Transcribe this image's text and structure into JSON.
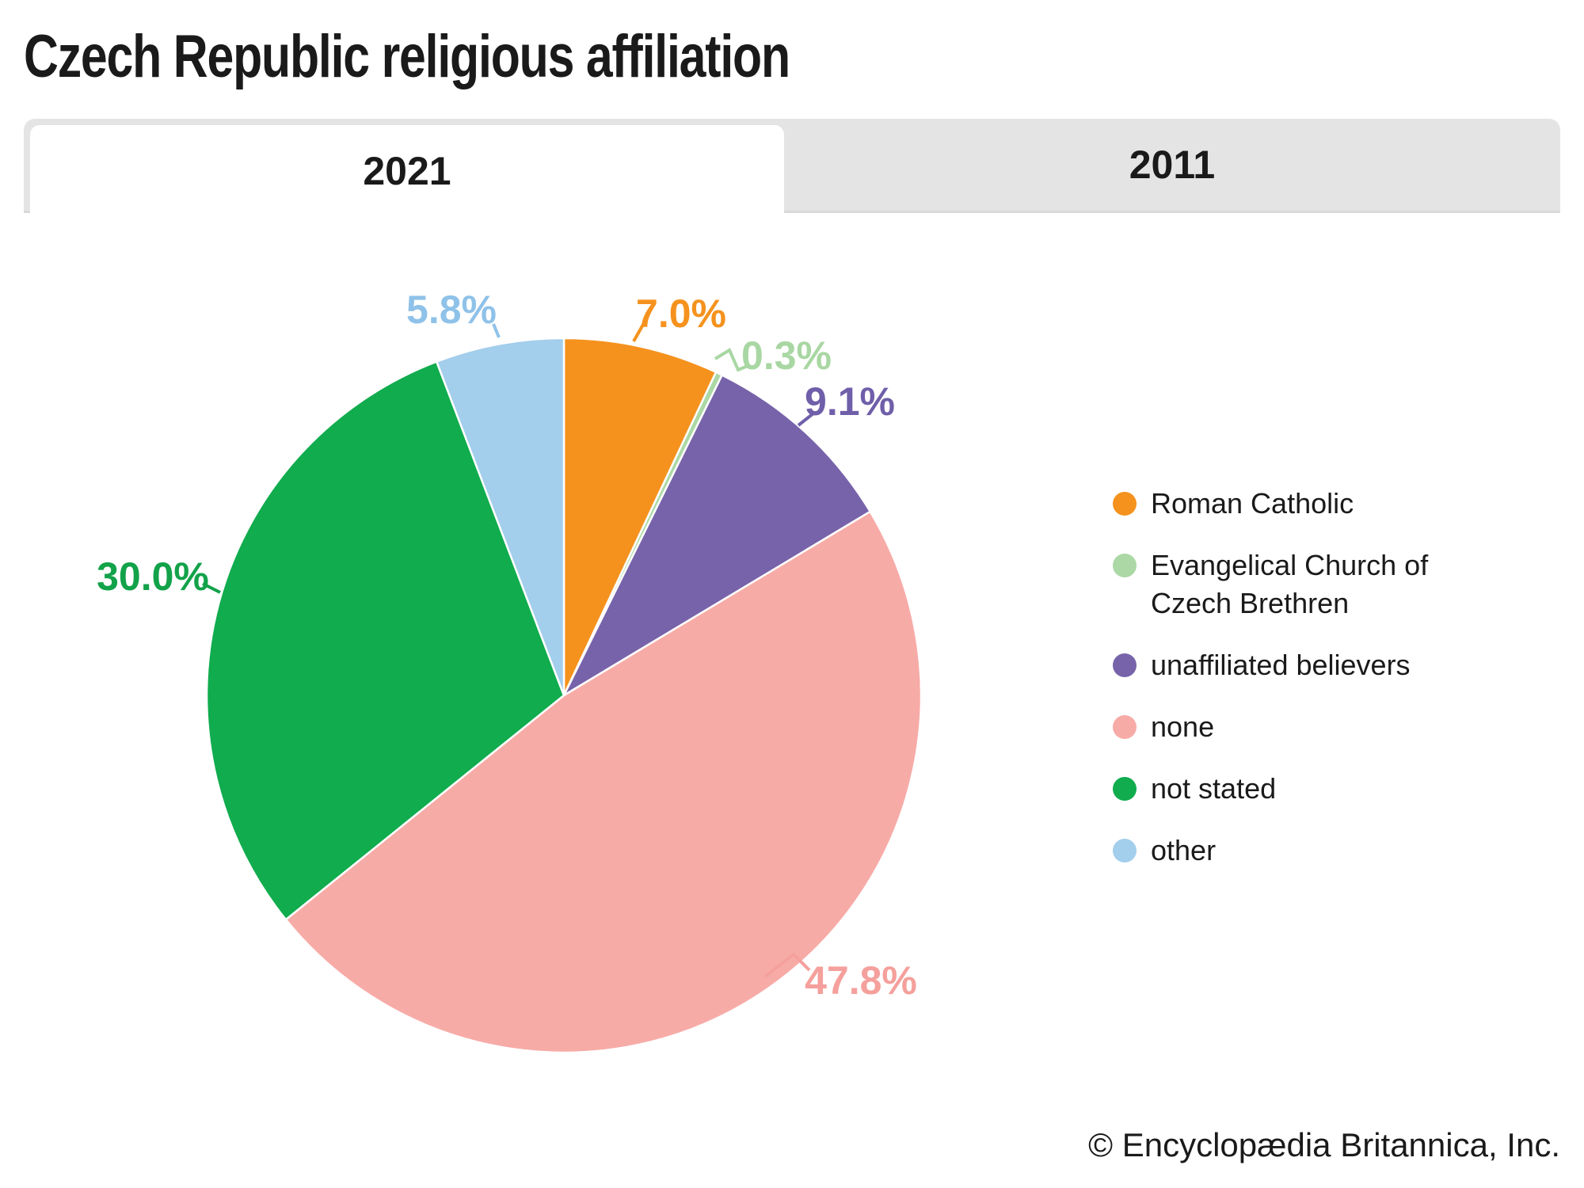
{
  "title": "Czech Republic religious affiliation",
  "tabs": [
    {
      "label": "2021",
      "active": true
    },
    {
      "label": "2011",
      "active": false
    }
  ],
  "footer": "© Encyclopædia Britannica, Inc.",
  "chart_data": {
    "type": "pie",
    "title": "Czech Republic religious affiliation",
    "active_year": "2021",
    "start_angle_deg": -90,
    "direction": "clockwise",
    "total": 100.0,
    "legend_position": "right",
    "slices": [
      {
        "label": "Roman Catholic",
        "value": 7.0,
        "value_label": "7.0%",
        "color": "#F5921E",
        "label_color": "#F5921E"
      },
      {
        "label": "Evangelical Church of Czech Brethren",
        "value": 0.3,
        "value_label": "0.3%",
        "color": "#ABD8A5",
        "label_color": "#A9D7A3"
      },
      {
        "label": "unaffiliated believers",
        "value": 9.1,
        "value_label": "9.1%",
        "color": "#7763AA",
        "label_color": "#6F5FA9"
      },
      {
        "label": "none",
        "value": 47.8,
        "value_label": "47.8%",
        "color": "#F7ABA7",
        "label_color": "#F5A09C"
      },
      {
        "label": "not stated",
        "value": 30.0,
        "value_label": "30.0%",
        "color": "#10AC4E",
        "label_color": "#12A24A"
      },
      {
        "label": "other",
        "value": 5.8,
        "value_label": "5.8%",
        "color": "#A3CEEC",
        "label_color": "#8FC2E9"
      }
    ]
  }
}
